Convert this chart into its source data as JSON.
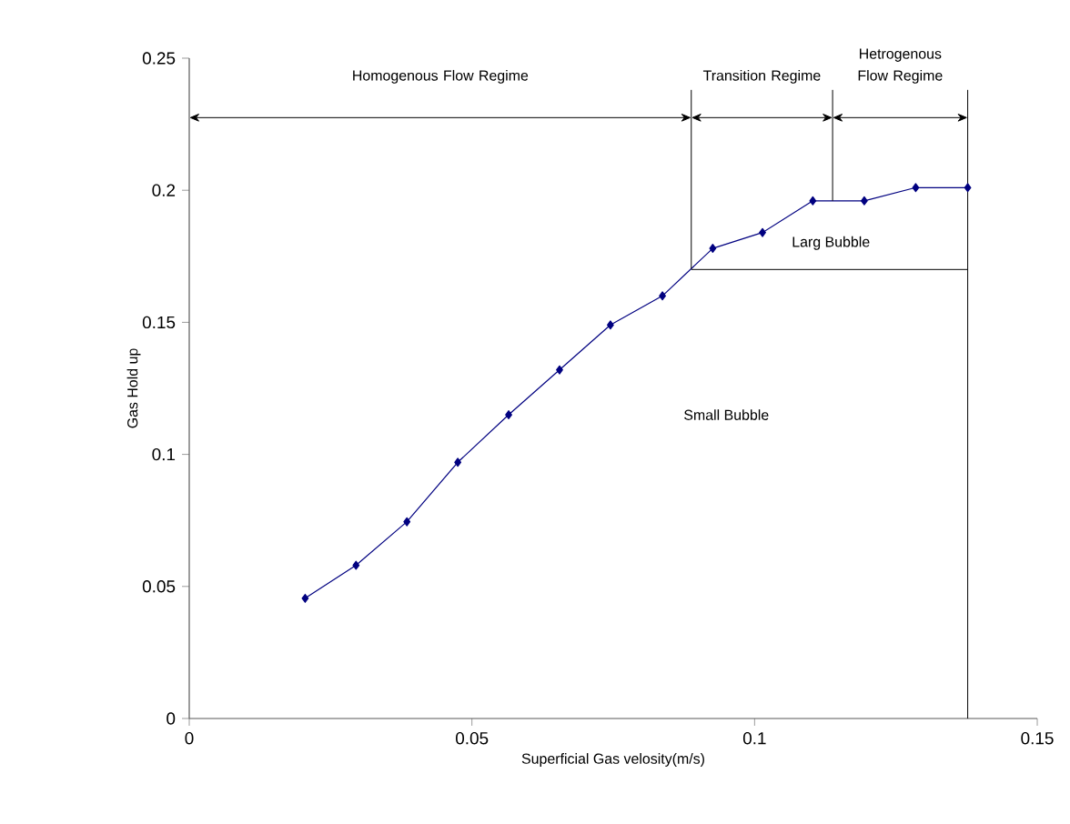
{
  "chart_data": {
    "type": "line",
    "xlabel": "Superficial Gas velosity(m/s)",
    "ylabel": "Gas Hold up",
    "x": [
      0.0205,
      0.0295,
      0.0385,
      0.0475,
      0.0565,
      0.0655,
      0.0745,
      0.0837,
      0.0926,
      0.1014,
      0.1103,
      0.1194,
      0.1285,
      0.1377
    ],
    "series": [
      {
        "color": "#000080",
        "values": [
          0.0455,
          0.058,
          0.0745,
          0.097,
          0.115,
          0.132,
          0.149,
          0.16,
          0.178,
          0.184,
          0.196,
          0.196,
          0.201,
          0.201
        ]
      }
    ],
    "marker": "diamond",
    "line_style": "solid",
    "grid": false,
    "xlim": [
      0,
      0.15
    ],
    "xticks": [
      0,
      0.05,
      0.1,
      0.15
    ],
    "ylim": [
      0,
      0.25
    ],
    "yticks": [
      0,
      0.05,
      0.1,
      0.15,
      0.2,
      0.25
    ],
    "ref_lines": [
      {
        "axis": "x",
        "value": 0.0888
      },
      {
        "axis": "x",
        "value": 0.1138
      },
      {
        "axis": "x",
        "value": 0.1377
      },
      {
        "axis": "y",
        "value": 0.2275
      },
      {
        "axis": "y",
        "value": 0.17
      }
    ],
    "annotations": [
      "Homogenous Flow Regime",
      "Transition Regime",
      "Hetrogenous Flow Regime",
      "Larg Bubble",
      "Small Bubble"
    ]
  }
}
